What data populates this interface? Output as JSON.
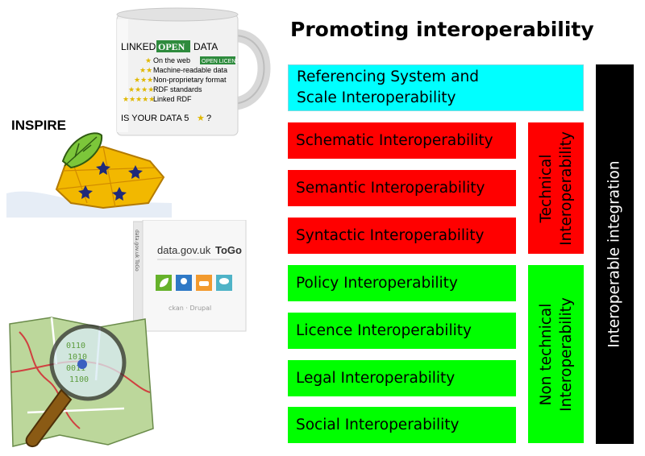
{
  "title": "Promoting interoperability",
  "rows": {
    "referencing": [
      "Referencing System and",
      "Scale Interoperability"
    ],
    "schematic": "Schematic Interoperability",
    "semantic": "Semantic Interoperability",
    "syntactic": "Syntactic Interoperability",
    "policy": "Policy Interoperability",
    "licence": "Licence Interoperability",
    "legal": "Legal Interoperability",
    "social": "Social Interoperability"
  },
  "groups": {
    "technical": [
      "Technical",
      "Interoperability"
    ],
    "non_technical": [
      "Non technical",
      "Interoperability"
    ],
    "integration": "Interoperable integration"
  },
  "mug": {
    "title_prefix": "LINKED",
    "title_open": "OPEN",
    "title_suffix": "DATA",
    "lines": [
      "On the web",
      "Machine-readable data",
      "Non-proprietary format",
      "RDF standards",
      "Linked RDF"
    ],
    "badge": "OPEN LICENSE",
    "question_prefix": "IS YOUR DATA 5",
    "question_suffix": "?"
  },
  "inspire": {
    "label": "INSPIRE"
  },
  "togo": {
    "title_prefix": "data.gov.uk",
    "title_bold": "ToGo",
    "spine": "data.gov.uk ToGo",
    "footer": "ckan · Drupal"
  },
  "colors": {
    "cyan": "#00ffff",
    "red": "#ff0000",
    "green": "#00ff00",
    "black": "#000000"
  }
}
